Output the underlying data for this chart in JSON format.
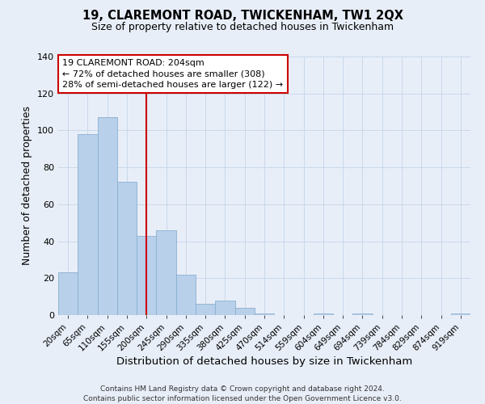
{
  "title": "19, CLAREMONT ROAD, TWICKENHAM, TW1 2QX",
  "subtitle": "Size of property relative to detached houses in Twickenham",
  "xlabel": "Distribution of detached houses by size in Twickenham",
  "ylabel": "Number of detached properties",
  "bar_values": [
    23,
    98,
    107,
    72,
    43,
    46,
    22,
    6,
    8,
    4,
    1,
    0,
    0,
    1,
    0,
    1,
    0,
    0,
    0,
    0,
    1
  ],
  "bar_labels": [
    "20sqm",
    "65sqm",
    "110sqm",
    "155sqm",
    "200sqm",
    "245sqm",
    "290sqm",
    "335sqm",
    "380sqm",
    "425sqm",
    "470sqm",
    "514sqm",
    "559sqm",
    "604sqm",
    "649sqm",
    "694sqm",
    "739sqm",
    "784sqm",
    "829sqm",
    "874sqm",
    "919sqm"
  ],
  "bar_color": "#b8d0ea",
  "bar_edge_color": "#8ab0d0",
  "vline_color": "#cc0000",
  "vline_pos": 4.5,
  "ylim": [
    0,
    140
  ],
  "yticks": [
    0,
    20,
    40,
    60,
    80,
    100,
    120,
    140
  ],
  "annotation_title": "19 CLAREMONT ROAD: 204sqm",
  "annotation_line1": "← 72% of detached houses are smaller (308)",
  "annotation_line2": "28% of semi-detached houses are larger (122) →",
  "annotation_box_color": "#ffffff",
  "annotation_box_edge": "#cc0000",
  "grid_color": "#c8d8ea",
  "bg_color": "#e8eef8",
  "footer1": "Contains HM Land Registry data © Crown copyright and database right 2024.",
  "footer2": "Contains public sector information licensed under the Open Government Licence v3.0."
}
